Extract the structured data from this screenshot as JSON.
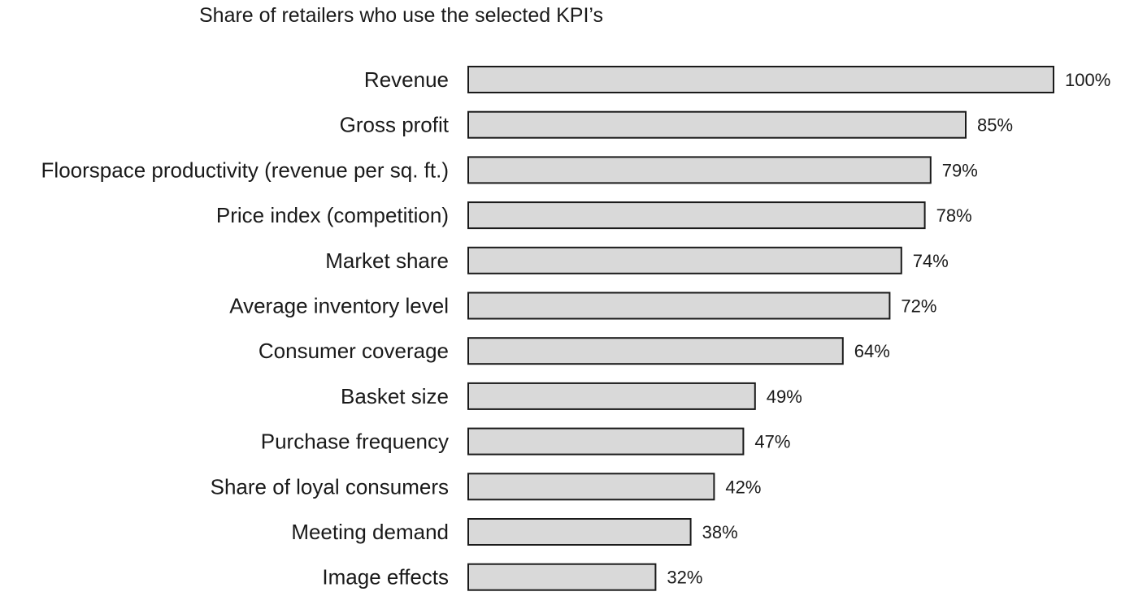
{
  "chart_data": {
    "type": "bar",
    "orientation": "horizontal",
    "title": "Share of retailers who use the selected KPI’s",
    "xlabel": "",
    "ylabel": "",
    "grid": false,
    "xlim": [
      0,
      100
    ],
    "categories": [
      "Revenue",
      "Gross profit",
      "Floorspace productivity (revenue per sq. ft.)",
      "Price index (competition)",
      "Market share",
      "Average inventory level",
      "Consumer coverage",
      "Basket size",
      "Purchase frequency",
      "Share of loyal consumers",
      "Meeting demand",
      "Image effects"
    ],
    "values": [
      100,
      85,
      79,
      78,
      74,
      72,
      64,
      49,
      47,
      42,
      38,
      32
    ],
    "value_labels": [
      "100%",
      "85%",
      "79%",
      "78%",
      "74%",
      "72%",
      "64%",
      "49%",
      "47%",
      "42%",
      "38%",
      "32%"
    ],
    "bar_color": "#d9d9d9",
    "bar_outline_color": "#1a1a1a"
  }
}
